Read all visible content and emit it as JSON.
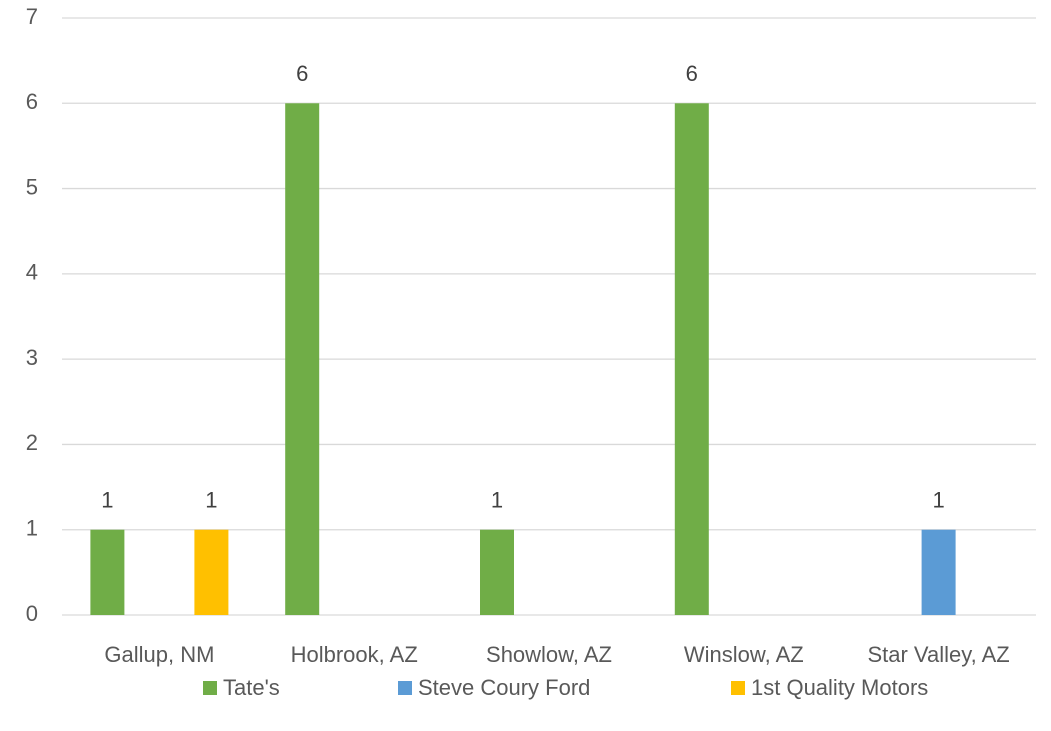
{
  "chart_data": {
    "type": "bar",
    "categories": [
      "Gallup, NM",
      "Holbrook, AZ",
      "Showlow, AZ",
      "Winslow, AZ",
      "Star Valley, AZ"
    ],
    "series": [
      {
        "name": "Tate's",
        "color": "#70ad47",
        "values": [
          1,
          6,
          1,
          6,
          null
        ]
      },
      {
        "name": "Steve Coury Ford",
        "color": "#5b9bd5",
        "values": [
          null,
          null,
          null,
          null,
          1
        ]
      },
      {
        "name": "1st Quality Motors",
        "color": "#ffc000",
        "values": [
          1,
          null,
          null,
          null,
          null
        ]
      }
    ],
    "ylim": [
      0,
      7
    ],
    "yticks": [
      0,
      1,
      2,
      3,
      4,
      5,
      6,
      7
    ],
    "grid": true,
    "legend": "bottom"
  }
}
